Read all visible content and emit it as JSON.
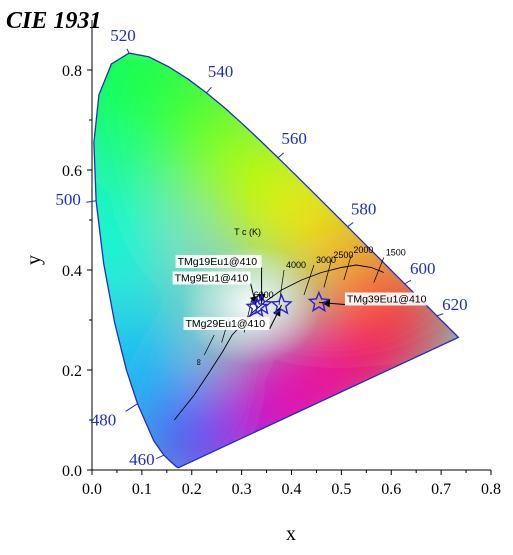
{
  "chart_data": {
    "type": "scatter",
    "title": "CIE 1931",
    "xlabel": "x",
    "ylabel": "y",
    "xlim": [
      0.0,
      0.8
    ],
    "ylim": [
      0.0,
      0.9
    ],
    "x_ticks": [
      "0.0",
      "0.1",
      "0.2",
      "0.3",
      "0.4",
      "0.5",
      "0.6",
      "0.7",
      "0.8"
    ],
    "y_ticks": [
      "0.0",
      "0.2",
      "0.4",
      "0.6",
      "0.8"
    ],
    "grid": false,
    "spectral_locus": [
      [
        0.1741,
        0.005
      ],
      [
        0.1738,
        0.0049
      ],
      [
        0.1733,
        0.0048
      ],
      [
        0.1726,
        0.0048
      ],
      [
        0.1714,
        0.0051
      ],
      [
        0.1689,
        0.0069
      ],
      [
        0.1644,
        0.0109
      ],
      [
        0.1566,
        0.0177
      ],
      [
        0.144,
        0.0297
      ],
      [
        0.1241,
        0.0578
      ],
      [
        0.0913,
        0.1327
      ],
      [
        0.0687,
        0.2007
      ],
      [
        0.0454,
        0.295
      ],
      [
        0.0235,
        0.4127
      ],
      [
        0.0082,
        0.5384
      ],
      [
        0.0039,
        0.6548
      ],
      [
        0.0139,
        0.7502
      ],
      [
        0.0389,
        0.812
      ],
      [
        0.0743,
        0.8338
      ],
      [
        0.1142,
        0.8262
      ],
      [
        0.1547,
        0.8059
      ],
      [
        0.1929,
        0.7816
      ],
      [
        0.2296,
        0.7543
      ],
      [
        0.2658,
        0.7243
      ],
      [
        0.3016,
        0.6923
      ],
      [
        0.3373,
        0.6589
      ],
      [
        0.3731,
        0.6245
      ],
      [
        0.4087,
        0.5896
      ],
      [
        0.4441,
        0.5547
      ],
      [
        0.4788,
        0.5202
      ],
      [
        0.5125,
        0.4866
      ],
      [
        0.5448,
        0.4544
      ],
      [
        0.5752,
        0.4242
      ],
      [
        0.6029,
        0.3965
      ],
      [
        0.627,
        0.3725
      ],
      [
        0.6482,
        0.3514
      ],
      [
        0.6658,
        0.334
      ],
      [
        0.6801,
        0.3197
      ],
      [
        0.6915,
        0.3083
      ],
      [
        0.7006,
        0.2993
      ],
      [
        0.7079,
        0.292
      ],
      [
        0.714,
        0.2859
      ],
      [
        0.719,
        0.2809
      ],
      [
        0.723,
        0.277
      ],
      [
        0.726,
        0.274
      ],
      [
        0.7283,
        0.2717
      ],
      [
        0.73,
        0.27
      ],
      [
        0.7347,
        0.2653
      ]
    ],
    "wavelength_labels": [
      {
        "text": "460",
        "x": 0.144,
        "y": 0.0297
      },
      {
        "text": "480",
        "x": 0.0913,
        "y": 0.1327
      },
      {
        "text": "500",
        "x": 0.0082,
        "y": 0.5384
      },
      {
        "text": "520",
        "x": 0.0743,
        "y": 0.8338
      },
      {
        "text": "540",
        "x": 0.2296,
        "y": 0.7543
      },
      {
        "text": "560",
        "x": 0.3731,
        "y": 0.6245
      },
      {
        "text": "580",
        "x": 0.5125,
        "y": 0.4866
      },
      {
        "text": "600",
        "x": 0.627,
        "y": 0.3725
      },
      {
        "text": "620",
        "x": 0.6915,
        "y": 0.3083
      }
    ],
    "planckian_locus": [
      [
        0.165,
        0.1
      ],
      [
        0.205,
        0.15
      ],
      [
        0.235,
        0.195
      ],
      [
        0.262,
        0.237
      ],
      [
        0.281,
        0.27
      ],
      [
        0.3,
        0.29
      ],
      [
        0.322,
        0.315
      ],
      [
        0.345,
        0.335
      ],
      [
        0.38,
        0.36
      ],
      [
        0.42,
        0.38
      ],
      [
        0.46,
        0.395
      ],
      [
        0.5,
        0.405
      ],
      [
        0.53,
        0.41
      ],
      [
        0.56,
        0.405
      ],
      [
        0.585,
        0.395
      ]
    ],
    "isotherms": [
      {
        "label": "∞",
        "x1": 0.225,
        "y1": 0.23,
        "x2": 0.245,
        "y2": 0.27
      },
      {
        "label": "",
        "x1": 0.26,
        "y1": 0.255,
        "x2": 0.275,
        "y2": 0.305
      },
      {
        "label": "6000",
        "x1": 0.305,
        "y1": 0.275,
        "x2": 0.32,
        "y2": 0.34
      },
      {
        "label": "4000",
        "x1": 0.375,
        "y1": 0.33,
        "x2": 0.385,
        "y2": 0.4
      },
      {
        "label": "3000",
        "x1": 0.425,
        "y1": 0.35,
        "x2": 0.445,
        "y2": 0.41
      },
      {
        "label": "2500",
        "x1": 0.465,
        "y1": 0.365,
        "x2": 0.48,
        "y2": 0.42
      },
      {
        "label": "2000",
        "x1": 0.505,
        "y1": 0.38,
        "x2": 0.52,
        "y2": 0.43
      },
      {
        "label": "1500",
        "x1": 0.565,
        "y1": 0.375,
        "x2": 0.585,
        "y2": 0.425
      }
    ],
    "cct_axis_label": "T c (K)",
    "series": [
      {
        "points": [
          {
            "name": "TMg9Eu1@410",
            "x": 0.33,
            "y": 0.325
          },
          {
            "name": "TMg19Eu1@410",
            "x": 0.34,
            "y": 0.33
          },
          {
            "name": "TMg29Eu1@410",
            "x": 0.38,
            "y": 0.33
          },
          {
            "name": "TMg39Eu1@410",
            "x": 0.455,
            "y": 0.335
          }
        ],
        "marker": "star",
        "color": "#2a1fd6"
      }
    ],
    "annotations": [
      {
        "text": "TMg9Eu1@410",
        "target": [
          0.33,
          0.325
        ]
      },
      {
        "text": "TMg19Eu1@410",
        "target": [
          0.34,
          0.33
        ]
      },
      {
        "text": "TMg29Eu1@410",
        "target": [
          0.38,
          0.33
        ]
      },
      {
        "text": "TMg39Eu1@410",
        "target": [
          0.455,
          0.335
        ]
      }
    ],
    "locus_color": "#1f2fbf"
  }
}
